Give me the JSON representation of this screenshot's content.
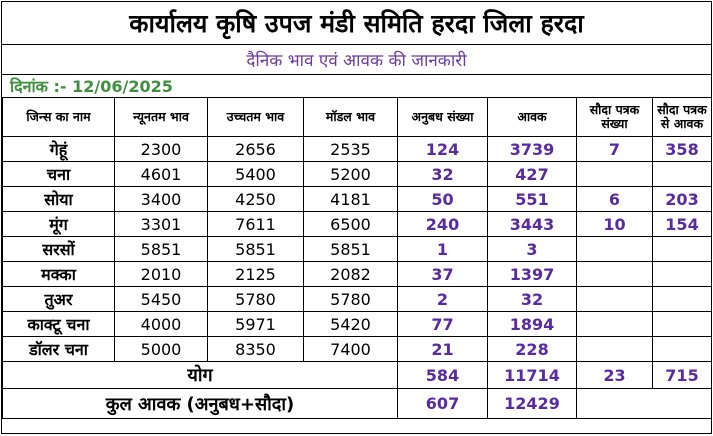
{
  "title": "कार्यालय कृषि उपज मंडी समिति हरदा जिला हरदा",
  "subtitle": "दैनिक भाव एवं आवक की जानकारी",
  "date_label": "दिनांक :- 12/06/2025",
  "headers": [
    "जिन्स का नाम",
    "न्यूनतम भाव",
    "उच्चतम भाव",
    "मॉडल भाव",
    "अनुबध संख्या",
    "आवक",
    "सौदा पत्रक संख्या",
    "सौदा पत्रक से आवक"
  ],
  "rows": [
    {
      "name": "गेहूं",
      "min": "2300",
      "max": "2656",
      "model": "2535",
      "anubadh": "124",
      "aavak": "3739",
      "sauda_sankhya": "7",
      "sauda_aavak": "358"
    },
    {
      "name": "चना",
      "min": "4601",
      "max": "5400",
      "model": "5200",
      "anubadh": "32",
      "aavak": "427",
      "sauda_sankhya": "",
      "sauda_aavak": ""
    },
    {
      "name": "सोया",
      "min": "3400",
      "max": "4250",
      "model": "4181",
      "anubadh": "50",
      "aavak": "551",
      "sauda_sankhya": "6",
      "sauda_aavak": "203"
    },
    {
      "name": "मूंग",
      "min": "3301",
      "max": "7611",
      "model": "6500",
      "anubadh": "240",
      "aavak": "3443",
      "sauda_sankhya": "10",
      "sauda_aavak": "154"
    },
    {
      "name": "सरसों",
      "min": "5851",
      "max": "5851",
      "model": "5851",
      "anubadh": "1",
      "aavak": "3",
      "sauda_sankhya": "",
      "sauda_aavak": ""
    },
    {
      "name": "मक्का",
      "min": "2010",
      "max": "2125",
      "model": "2082",
      "anubadh": "37",
      "aavak": "1397",
      "sauda_sankhya": "",
      "sauda_aavak": ""
    },
    {
      "name": "तुअर",
      "min": "5450",
      "max": "5780",
      "model": "5780",
      "anubadh": "2",
      "aavak": "32",
      "sauda_sankhya": "",
      "sauda_aavak": ""
    },
    {
      "name": "काक्टू चना",
      "min": "4000",
      "max": "5971",
      "model": "5420",
      "anubadh": "77",
      "aavak": "1894",
      "sauda_sankhya": "",
      "sauda_aavak": ""
    },
    {
      "name": "डॉलर चना",
      "min": "5000",
      "max": "8350",
      "model": "7400",
      "anubadh": "21",
      "aavak": "228",
      "sauda_sankhya": "",
      "sauda_aavak": ""
    }
  ],
  "total": {
    "label": "योग",
    "anubadh": "584",
    "aavak": "11714",
    "sauda_sankhya": "23",
    "sauda_aavak": "715"
  },
  "grand_total": {
    "label": "कुल आवक (अनुबध+सौदा)",
    "anubadh": "607",
    "aavak": "12429"
  }
}
